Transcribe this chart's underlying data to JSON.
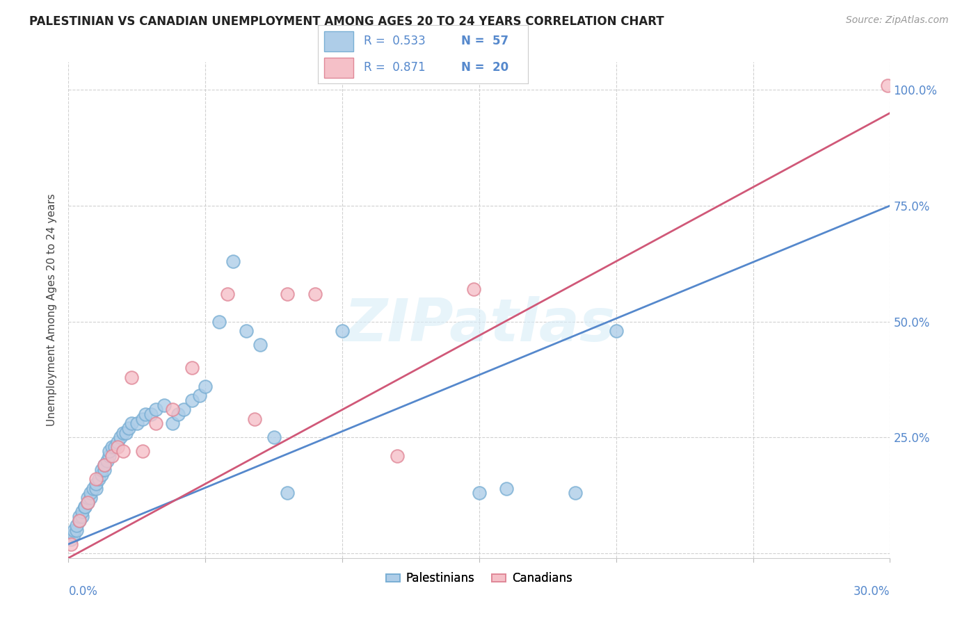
{
  "title": "PALESTINIAN VS CANADIAN UNEMPLOYMENT AMONG AGES 20 TO 24 YEARS CORRELATION CHART",
  "source": "Source: ZipAtlas.com",
  "ylabel": "Unemployment Among Ages 20 to 24 years",
  "xlim": [
    0.0,
    0.3
  ],
  "ylim": [
    -0.01,
    1.06
  ],
  "ytick_vals": [
    0.0,
    0.25,
    0.5,
    0.75,
    1.0
  ],
  "ytick_labels": [
    "",
    "25.0%",
    "50.0%",
    "75.0%",
    "100.0%"
  ],
  "xtick_vals": [
    0.0,
    0.05,
    0.1,
    0.15,
    0.2,
    0.25,
    0.3
  ],
  "legend_label1": "Palestinians",
  "legend_label2": "Canadians",
  "r1": "0.533",
  "n1": "57",
  "r2": "0.871",
  "n2": "20",
  "blue_face": "#aecde8",
  "blue_edge": "#7aafd4",
  "pink_face": "#f5c0c8",
  "pink_edge": "#e08898",
  "blue_line_color": "#5588cc",
  "pink_line_color": "#d05878",
  "watermark_color": "#d8edf8",
  "blue_scatter_x": [
    0.001,
    0.002,
    0.002,
    0.003,
    0.003,
    0.004,
    0.004,
    0.005,
    0.005,
    0.006,
    0.006,
    0.007,
    0.007,
    0.008,
    0.008,
    0.009,
    0.01,
    0.01,
    0.011,
    0.012,
    0.012,
    0.013,
    0.013,
    0.014,
    0.015,
    0.015,
    0.016,
    0.017,
    0.018,
    0.019,
    0.02,
    0.021,
    0.022,
    0.023,
    0.025,
    0.027,
    0.028,
    0.03,
    0.032,
    0.035,
    0.038,
    0.04,
    0.042,
    0.045,
    0.048,
    0.05,
    0.055,
    0.06,
    0.065,
    0.07,
    0.075,
    0.08,
    0.1,
    0.15,
    0.16,
    0.185,
    0.2
  ],
  "blue_scatter_y": [
    0.03,
    0.04,
    0.05,
    0.05,
    0.06,
    0.07,
    0.08,
    0.08,
    0.09,
    0.1,
    0.1,
    0.11,
    0.12,
    0.12,
    0.13,
    0.14,
    0.14,
    0.15,
    0.16,
    0.17,
    0.18,
    0.18,
    0.19,
    0.2,
    0.21,
    0.22,
    0.23,
    0.23,
    0.24,
    0.25,
    0.26,
    0.26,
    0.27,
    0.28,
    0.28,
    0.29,
    0.3,
    0.3,
    0.31,
    0.32,
    0.28,
    0.3,
    0.31,
    0.33,
    0.34,
    0.36,
    0.5,
    0.63,
    0.48,
    0.45,
    0.25,
    0.13,
    0.48,
    0.13,
    0.14,
    0.13,
    0.48
  ],
  "pink_scatter_x": [
    0.001,
    0.004,
    0.007,
    0.01,
    0.013,
    0.016,
    0.018,
    0.02,
    0.023,
    0.027,
    0.032,
    0.038,
    0.045,
    0.058,
    0.068,
    0.08,
    0.09,
    0.12,
    0.148,
    0.299
  ],
  "pink_scatter_y": [
    0.02,
    0.07,
    0.11,
    0.16,
    0.19,
    0.21,
    0.23,
    0.22,
    0.38,
    0.22,
    0.28,
    0.31,
    0.4,
    0.56,
    0.29,
    0.56,
    0.56,
    0.21,
    0.57,
    1.01
  ],
  "blue_line_x0": 0.0,
  "blue_line_x1": 0.3,
  "blue_line_y0": 0.02,
  "blue_line_y1": 0.75,
  "pink_line_x0": 0.0,
  "pink_line_x1": 0.3,
  "pink_line_y0": -0.01,
  "pink_line_y1": 0.95
}
